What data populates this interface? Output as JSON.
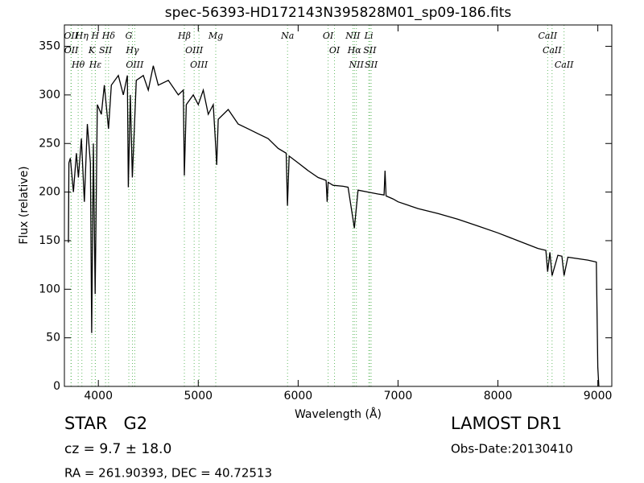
{
  "chart_data": {
    "type": "line",
    "title": "spec-56393-HD172143N395828M01_sp09-186.fits",
    "x_label": "Wavelength (Å)",
    "y_label": "Flux (relative)",
    "color": "#000000",
    "line_color": "#66bb66",
    "xlim": [
      3660,
      9140
    ],
    "ylim": [
      0,
      372
    ],
    "xticks": [
      4000,
      5000,
      6000,
      7000,
      8000,
      9000
    ],
    "yticks": [
      0,
      50,
      100,
      150,
      200,
      250,
      300,
      350
    ],
    "x": [
      3700,
      3705,
      3720,
      3750,
      3780,
      3800,
      3830,
      3860,
      3890,
      3920,
      3933,
      3950,
      3968,
      3990,
      4030,
      4060,
      4102,
      4130,
      4200,
      4250,
      4290,
      4300,
      4320,
      4340,
      4380,
      4450,
      4500,
      4550,
      4600,
      4700,
      4800,
      4850,
      4861,
      4880,
      4950,
      5000,
      5050,
      5100,
      5150,
      5170,
      5185,
      5200,
      5300,
      5400,
      5500,
      5600,
      5700,
      5800,
      5880,
      5893,
      5910,
      6000,
      6100,
      6200,
      6280,
      6290,
      6300,
      6350,
      6450,
      6500,
      6563,
      6600,
      6700,
      6800,
      6860,
      6870,
      6880,
      6950,
      7000,
      7200,
      7400,
      7600,
      7800,
      8000,
      8200,
      8400,
      8480,
      8498,
      8520,
      8542,
      8600,
      8640,
      8662,
      8700,
      8900,
      8985,
      9000,
      9010
    ],
    "values": [
      148,
      230,
      235,
      200,
      240,
      215,
      255,
      190,
      270,
      230,
      55,
      250,
      95,
      290,
      280,
      310,
      265,
      310,
      320,
      300,
      320,
      205,
      300,
      215,
      315,
      320,
      305,
      330,
      310,
      315,
      300,
      305,
      217,
      290,
      300,
      290,
      305,
      280,
      290,
      255,
      228,
      275,
      285,
      270,
      265,
      260,
      255,
      245,
      240,
      186,
      237,
      230,
      222,
      215,
      212,
      190,
      210,
      207,
      206,
      205,
      163,
      202,
      200,
      198,
      197,
      222,
      196,
      193,
      190,
      183,
      178,
      172,
      165,
      158,
      150,
      142,
      140,
      118,
      138,
      114,
      135,
      134,
      114,
      133,
      130,
      128,
      20,
      0
    ],
    "annotations": [
      {
        "label": "OII",
        "x": 3726
      },
      {
        "label": "OII",
        "x": 3729
      },
      {
        "label": "Hθ",
        "x": 3798
      },
      {
        "label": "Hη",
        "x": 3835
      },
      {
        "label": "K",
        "x": 3934
      },
      {
        "label": "H",
        "x": 3969
      },
      {
        "label": "Hε",
        "x": 3970
      },
      {
        "label": "SII",
        "x": 4072
      },
      {
        "label": "Hδ",
        "x": 4102
      },
      {
        "label": "G",
        "x": 4305
      },
      {
        "label": "Hγ",
        "x": 4341
      },
      {
        "label": "OIII",
        "x": 4364
      },
      {
        "label": "Hβ",
        "x": 4861
      },
      {
        "label": "OIII",
        "x": 4959
      },
      {
        "label": "OIII",
        "x": 5007
      },
      {
        "label": "Mg",
        "x": 5175
      },
      {
        "label": "Na",
        "x": 5894
      },
      {
        "label": "OI",
        "x": 6300
      },
      {
        "label": "OI",
        "x": 6364
      },
      {
        "label": "NII",
        "x": 6548
      },
      {
        "label": "Hα",
        "x": 6563
      },
      {
        "label": "NII",
        "x": 6583
      },
      {
        "label": "Li",
        "x": 6707
      },
      {
        "label": "SII",
        "x": 6717
      },
      {
        "label": "SII",
        "x": 6731
      },
      {
        "label": "CaII",
        "x": 8498
      },
      {
        "label": "CaII",
        "x": 8542
      },
      {
        "label": "CaII",
        "x": 8662
      }
    ]
  },
  "info": {
    "object": "STAR   G2",
    "cz": "cz = 9.7 ± 18.0",
    "coords": "RA = 261.90393, DEC = 40.72513",
    "survey": "LAMOST DR1",
    "obs_date": "Obs-Date:20130410"
  }
}
